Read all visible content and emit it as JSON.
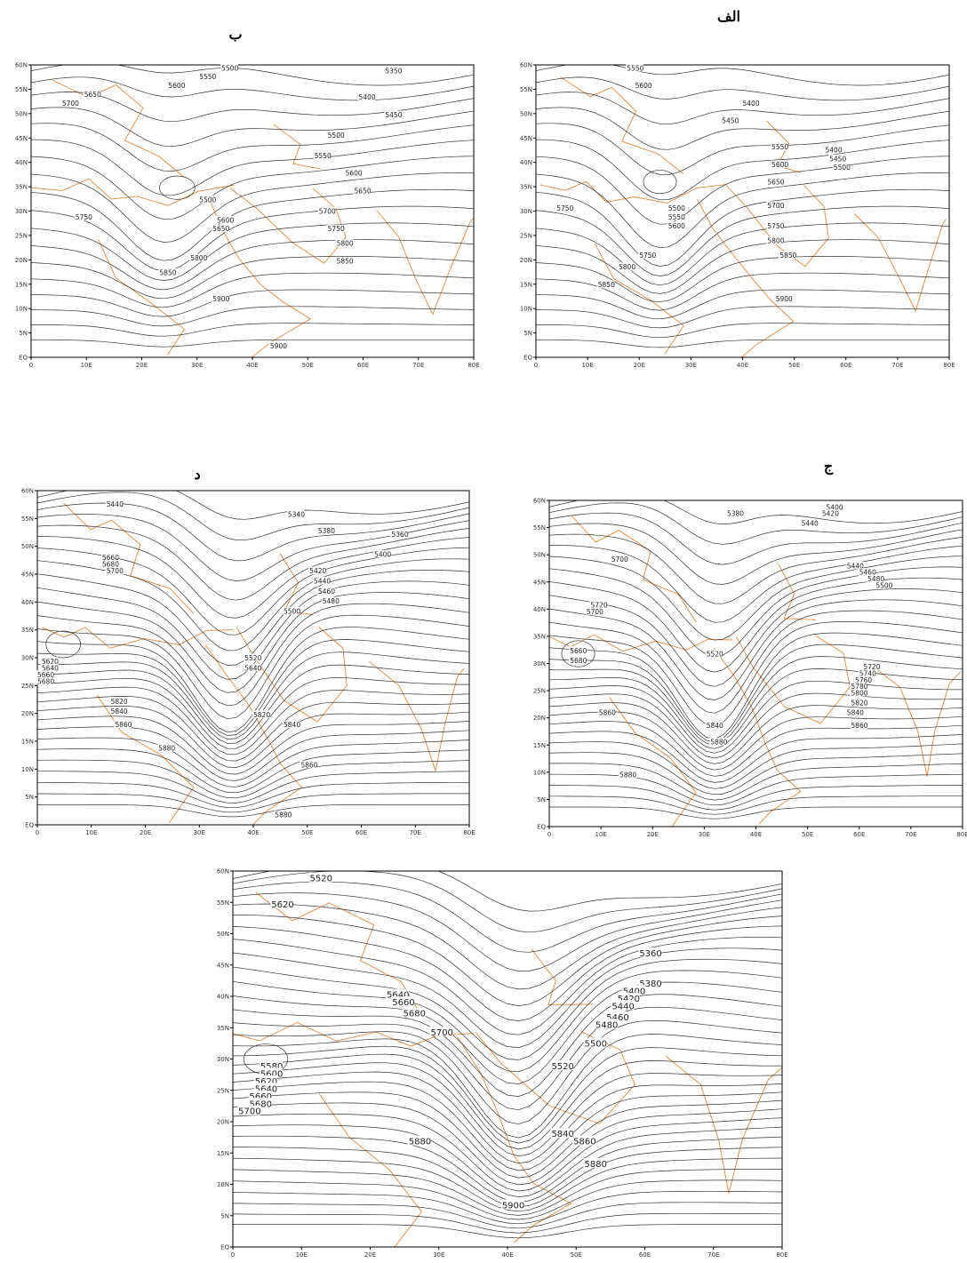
{
  "lat_ticks": [
    "60N",
    "55N",
    "50N",
    "45N",
    "40N",
    "35N",
    "30N",
    "25N",
    "20N",
    "15N",
    "10N",
    "5N",
    "EQ"
  ],
  "lon_ticks": [
    "0",
    "10E",
    "20E",
    "30E",
    "40E",
    "50E",
    "60E",
    "70E",
    "80E"
  ],
  "panels": [
    {
      "label": "ب",
      "contour_labels": [
        "5500",
        "5350",
        "5550",
        "5600",
        "5650",
        "5700",
        "5400",
        "5450",
        "5500",
        "5550",
        "5600",
        "5650",
        "5500",
        "5700",
        "5750",
        "5600",
        "5650",
        "5750",
        "5800",
        "5800",
        "5850",
        "5850",
        "5900",
        "5900"
      ]
    },
    {
      "label": "الف",
      "contour_labels": [
        "5550",
        "5600",
        "5400",
        "5450",
        "5550",
        "5400",
        "5450",
        "5500",
        "5600",
        "5650",
        "5700",
        "5750",
        "5500",
        "5550",
        "5600",
        "5750",
        "5800",
        "5850",
        "5750",
        "5800",
        "5850",
        "5900"
      ]
    },
    {
      "label": "د",
      "contour_labels": [
        "5440",
        "5340",
        "5380",
        "5360",
        "5400",
        "5660",
        "5680",
        "5700",
        "5420",
        "5440",
        "5460",
        "5480",
        "5500",
        "5620",
        "5640",
        "5660",
        "5680",
        "5520",
        "5640",
        "5820",
        "5840",
        "5820",
        "5840",
        "5860",
        "5880",
        "5860",
        "5880"
      ]
    },
    {
      "label": "ج",
      "contour_labels": [
        "5380",
        "5400",
        "5420",
        "5440",
        "5700",
        "5440",
        "5460",
        "5480",
        "5500",
        "5720",
        "5700",
        "5660",
        "5680",
        "5520",
        "5720",
        "5740",
        "5760",
        "5780",
        "5800",
        "5820",
        "5840",
        "5860",
        "5860",
        "5840",
        "5880",
        "5880"
      ]
    },
    {
      "contour_labels": [
        "5520",
        "5620",
        "5360",
        "5380",
        "5640",
        "5660",
        "5680",
        "5400",
        "5420",
        "5440",
        "5460",
        "5480",
        "5700",
        "5500",
        "5580",
        "5600",
        "5620",
        "5640",
        "5660",
        "5680",
        "5700",
        "5520",
        "5840",
        "5860",
        "5880",
        "5880",
        "5900"
      ]
    }
  ]
}
